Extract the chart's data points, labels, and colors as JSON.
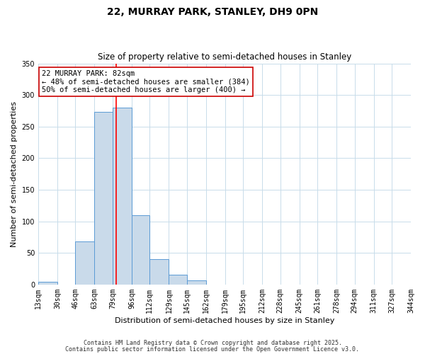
{
  "title": "22, MURRAY PARK, STANLEY, DH9 0PN",
  "subtitle": "Size of property relative to semi-detached houses in Stanley",
  "xlabel": "Distribution of semi-detached houses by size in Stanley",
  "ylabel": "Number of semi-detached properties",
  "bin_edges": [
    13,
    30,
    46,
    63,
    79,
    96,
    112,
    129,
    145,
    162,
    179,
    195,
    212,
    228,
    245,
    261,
    278,
    294,
    311,
    327,
    344
  ],
  "bar_heights": [
    4,
    0,
    68,
    273,
    280,
    110,
    40,
    16,
    7,
    0,
    0,
    0,
    0,
    0,
    0,
    0,
    0,
    0,
    0,
    0
  ],
  "bar_color": "#c9daea",
  "bar_edge_color": "#5b9bd5",
  "red_line_x": 82,
  "annotation_title": "22 MURRAY PARK: 82sqm",
  "annotation_line1": "← 48% of semi-detached houses are smaller (384)",
  "annotation_line2": "50% of semi-detached houses are larger (400) →",
  "annotation_box_color": "#ffffff",
  "annotation_box_edge_color": "#cc0000",
  "ylim": [
    0,
    350
  ],
  "footer_line1": "Contains HM Land Registry data © Crown copyright and database right 2025.",
  "footer_line2": "Contains public sector information licensed under the Open Government Licence v3.0.",
  "background_color": "#ffffff",
  "grid_color": "#c8dcea",
  "title_fontsize": 10,
  "subtitle_fontsize": 8.5,
  "axis_label_fontsize": 8,
  "tick_fontsize": 7,
  "annotation_fontsize": 7.5,
  "footer_fontsize": 6
}
